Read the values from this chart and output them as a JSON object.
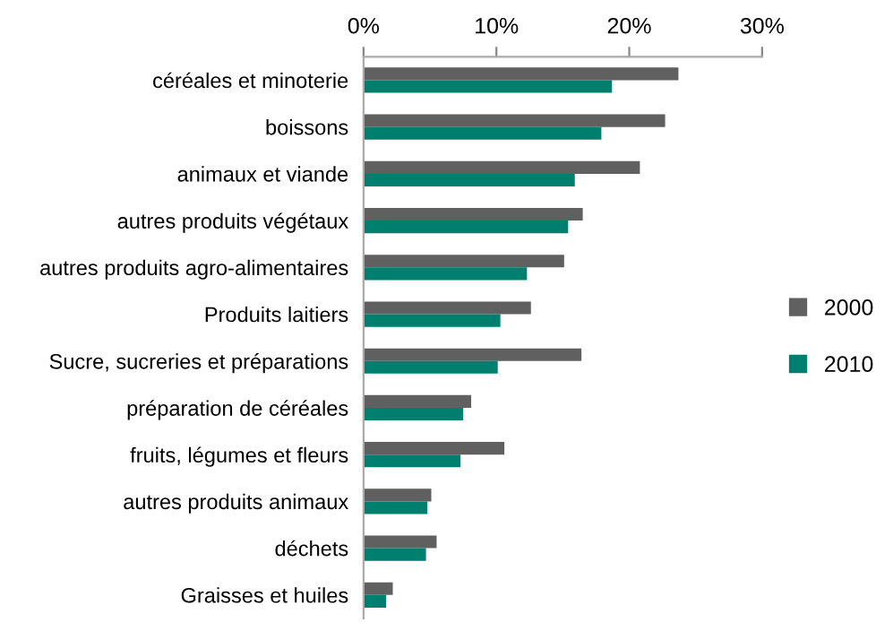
{
  "chart_data": {
    "type": "bar",
    "orientation": "horizontal",
    "categories": [
      "céréales et minoterie",
      "boissons",
      "animaux et viande",
      "autres produits végétaux",
      "autres produits agro-alimentaires",
      "Produits laitiers",
      "Sucre, sucreries et préparations",
      "préparation de céréales",
      "fruits, légumes et fleurs",
      "autres produits animaux",
      "déchets",
      "Graisses et huiles"
    ],
    "series": [
      {
        "name": "2000",
        "color": "#606060",
        "values": [
          23.7,
          22.7,
          20.8,
          16.5,
          15.1,
          12.6,
          16.4,
          8.1,
          10.6,
          5.1,
          5.5,
          2.2
        ]
      },
      {
        "name": "2010",
        "color": "#007e6e",
        "values": [
          18.7,
          17.9,
          15.9,
          15.4,
          12.3,
          10.3,
          10.1,
          7.5,
          7.3,
          4.8,
          4.7,
          1.7
        ]
      }
    ],
    "xlim": [
      0,
      30
    ],
    "xticks": [
      {
        "value": 0,
        "label": "0%"
      },
      {
        "value": 10,
        "label": "10%"
      },
      {
        "value": 20,
        "label": "20%"
      },
      {
        "value": 30,
        "label": "30%"
      }
    ],
    "grid": false,
    "legend": "right"
  }
}
